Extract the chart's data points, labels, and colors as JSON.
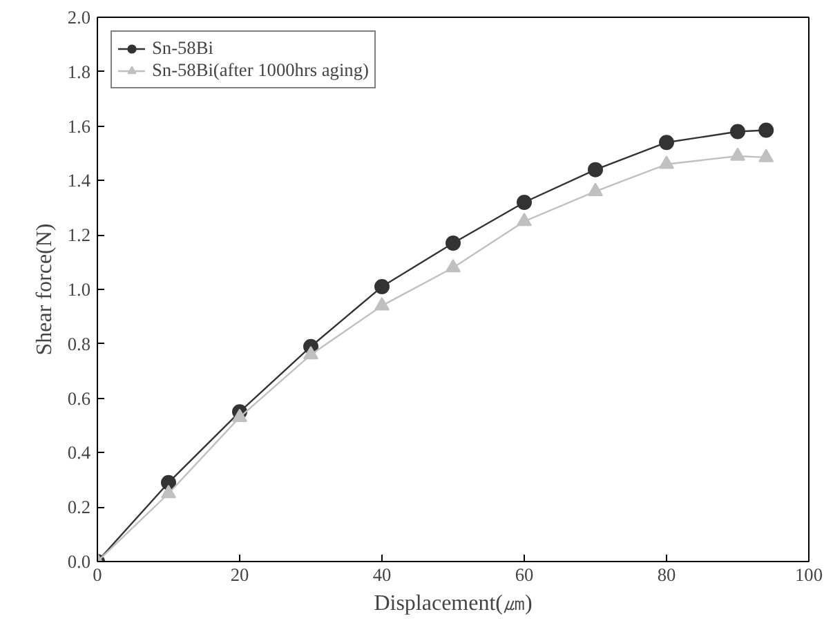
{
  "chart_data": {
    "type": "line",
    "xlabel": "Displacement(㎛)",
    "ylabel": "Shear force(N)",
    "xlim": [
      0,
      100
    ],
    "xticks": [
      0,
      20,
      40,
      60,
      80,
      100
    ],
    "ylim": [
      0,
      2.0
    ],
    "yticks": [
      {
        "value": 0,
        "label": "0.0"
      },
      {
        "value": 0.2,
        "label": "0.2"
      },
      {
        "value": 0.4,
        "label": "0.4"
      },
      {
        "value": 0.6,
        "label": "0.6"
      },
      {
        "value": 0.8,
        "label": "0.8"
      },
      {
        "value": 1.0,
        "label": "1.0"
      },
      {
        "value": 1.2,
        "label": "1.2"
      },
      {
        "value": 1.4,
        "label": "1.4"
      },
      {
        "value": 1.6,
        "label": "1.6"
      },
      {
        "value": 1.8,
        "label": "1.8"
      },
      {
        "value": 2.0,
        "label": "2.0"
      }
    ],
    "x": [
      0,
      10,
      20,
      30,
      40,
      50,
      60,
      70,
      80,
      90,
      94
    ],
    "series": [
      {
        "name": "Sn-58Bi",
        "color": "#333333",
        "marker": "circle",
        "values": [
          0,
          0.29,
          0.55,
          0.79,
          1.01,
          1.17,
          1.32,
          1.44,
          1.54,
          1.58,
          1.585
        ]
      },
      {
        "name": "Sn-58Bi(after 1000hrs aging)",
        "color": "#c0c0c0",
        "marker": "triangle",
        "values": [
          0,
          0.25,
          0.53,
          0.76,
          0.94,
          1.08,
          1.25,
          1.36,
          1.46,
          1.49,
          1.485
        ]
      }
    ],
    "grid": false,
    "legend": "top left"
  }
}
